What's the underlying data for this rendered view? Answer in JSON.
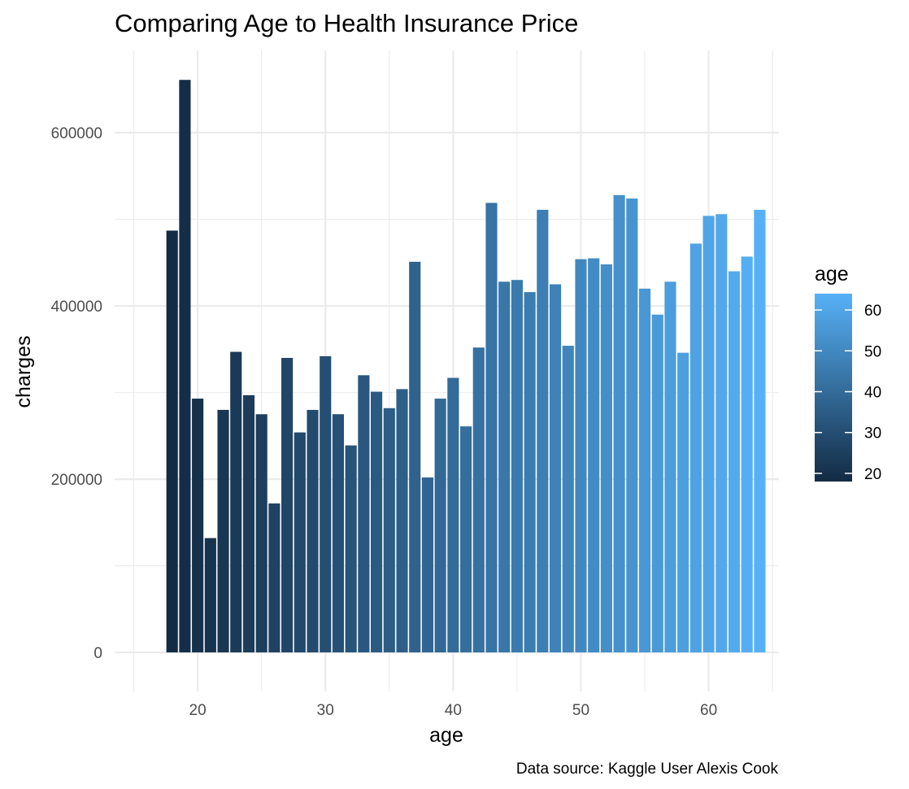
{
  "chart_data": {
    "type": "bar",
    "title": "Comparing Age to Health Insurance Price",
    "xlabel": "age",
    "ylabel": "charges",
    "caption": "Data source: Kaggle User Alexis Cook",
    "x": [
      18,
      19,
      20,
      21,
      22,
      23,
      24,
      25,
      26,
      27,
      28,
      29,
      30,
      31,
      32,
      33,
      34,
      35,
      36,
      37,
      38,
      39,
      40,
      41,
      42,
      43,
      44,
      45,
      46,
      47,
      48,
      49,
      50,
      51,
      52,
      53,
      54,
      55,
      56,
      57,
      58,
      59,
      60,
      61,
      62,
      63,
      64
    ],
    "values": [
      487000,
      661000,
      293000,
      132000,
      280000,
      347000,
      297000,
      275000,
      172000,
      340000,
      254000,
      280000,
      342000,
      275000,
      239000,
      320000,
      301000,
      282000,
      304000,
      451000,
      202000,
      293000,
      317000,
      261000,
      352000,
      519000,
      428000,
      430000,
      416000,
      511000,
      425000,
      354000,
      454000,
      455000,
      448000,
      528000,
      524000,
      420000,
      390000,
      428000,
      346000,
      472000,
      504000,
      506000,
      440000,
      457000,
      511000
    ],
    "xlim": [
      13.5,
      65.5
    ],
    "ylim": [
      -45000,
      695000
    ],
    "x_ticks": [
      20,
      30,
      40,
      50,
      60
    ],
    "x_tick_labels": [
      "20",
      "30",
      "40",
      "50",
      "60"
    ],
    "y_ticks": [
      0,
      200000,
      400000,
      600000
    ],
    "y_tick_labels": [
      "0",
      "200000",
      "400000",
      "600000"
    ],
    "grid": true,
    "color_scale": {
      "title": "age",
      "low_color": "#132B43",
      "high_color": "#56B1F7",
      "range": [
        18,
        64
      ],
      "ticks": [
        20,
        30,
        40,
        50,
        60
      ],
      "tick_labels": [
        "20",
        "30",
        "40",
        "50",
        "60"
      ]
    },
    "legend_position": "right"
  }
}
